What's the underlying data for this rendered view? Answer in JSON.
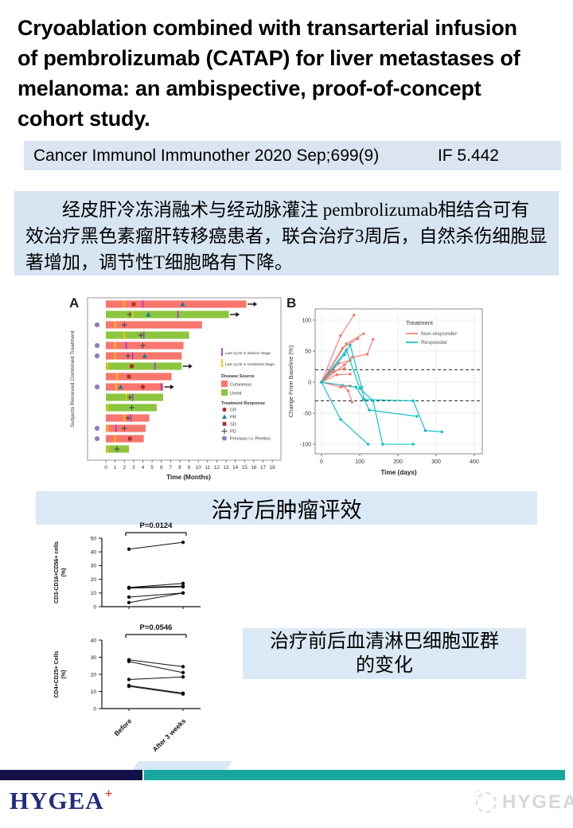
{
  "title": {
    "lines": [
      "Cryoablation combined with transarterial infusion",
      "of pembrolizumab (CATAP) for liver metastases of",
      "melanoma: an ambispective, proof-of-concept",
      "cohort study."
    ]
  },
  "citation": {
    "journal": "Cancer Immunol Immunother 2020 Sep;699(9)",
    "impact_factor": "IF 5.442"
  },
  "summary_cn": "经皮肝冷冻消融术与经动脉灌注 pembrolizumab相结合可有效治疗黑色素瘤肝转移癌患者，联合治疗3周后，自然杀伤细胞显著增加，调节性T细胞略有下降。",
  "captions": {
    "tumor_response": "治疗后肿瘤评效",
    "lymphocyte_line1": "治疗前后血清淋巴细胞亚群",
    "lymphocyte_line2": "的变化"
  },
  "footer": {
    "logo_text": "HYGEA",
    "logo_cross": "+",
    "watermark_text": "HYGEA",
    "navy": "#131048",
    "teal": "#18a7a0",
    "logo_color": "#222d7a",
    "cross_color": "#e52b1d"
  },
  "panel_colors": {
    "citation_bg": "#dbe5f1",
    "summary_bg": "#d7e4f2",
    "caption_bg": "#dbe9f6"
  },
  "chart_data": [
    {
      "id": "fig-a",
      "type": "swimmer",
      "panel_label": "A",
      "xlabel": "Time (Months)",
      "ylabel": "Subjects Received Combined Treatment",
      "xlim": [
        0,
        18
      ],
      "xticks": [
        0,
        1,
        2,
        3,
        4,
        5,
        6,
        7,
        8,
        9,
        10,
        11,
        12,
        13,
        14,
        15,
        16,
        17,
        18
      ],
      "colors": {
        "cutaneous": "#F8766D",
        "uveal": "#8CC63F",
        "combined": "#F2C500",
        "infusion": "#A43DD1",
        "cr_sd": "#A93226",
        "pr": "#17808D",
        "pd": "#444444",
        "prev_pembro": "#8E7CC3"
      },
      "legend": {
        "infusion_label": "Last Cycle in Infusion Stage",
        "combined_label": "Last Cycle in Combined Stage",
        "disease_title": "Disease Source",
        "disease_items": [
          {
            "label": "Cutaneous",
            "color": "#F8766D"
          },
          {
            "label": "Uveal",
            "color": "#8CC63F"
          }
        ],
        "response_title": "Treatment Response",
        "response_items": [
          {
            "label": "CR",
            "marker": "circle",
            "color": "#A93226"
          },
          {
            "label": "PR",
            "marker": "triangle",
            "color": "#17808D"
          },
          {
            "label": "SD",
            "marker": "square",
            "color": "#A93226"
          },
          {
            "label": "PD",
            "marker": "plus",
            "color": "#444444"
          },
          {
            "label": "Previous i.v. Pembro",
            "marker": "dot",
            "color": "#8E7CC3"
          }
        ]
      },
      "subjects": [
        {
          "disease": "Cutaneous",
          "months": 15.2,
          "ongoing": true,
          "prev_pembro": false,
          "marks": [
            {
              "t": "combined",
              "x": 2.0
            },
            {
              "t": "SD",
              "x": 3.0
            },
            {
              "t": "infusion",
              "x": 4.0
            },
            {
              "t": "PR",
              "x": 8.3
            }
          ]
        },
        {
          "disease": "Uveal",
          "months": 13.3,
          "ongoing": true,
          "prev_pembro": false,
          "marks": [
            {
              "t": "PD",
              "x": 2.6
            },
            {
              "t": "combined",
              "x": 2.9
            },
            {
              "t": "PR",
              "x": 4.6
            },
            {
              "t": "infusion",
              "x": 7.8
            }
          ]
        },
        {
          "disease": "Cutaneous",
          "months": 10.4,
          "ongoing": false,
          "prev_pembro": true,
          "marks": [
            {
              "t": "combined",
              "x": 1.0
            },
            {
              "t": "PD",
              "x": 2.0
            }
          ]
        },
        {
          "disease": "Uveal",
          "months": 9.0,
          "ongoing": false,
          "prev_pembro": false,
          "marks": [
            {
              "t": "combined",
              "x": 2.0
            },
            {
              "t": "PD",
              "x": 3.8
            },
            {
              "t": "infusion",
              "x": 4.1
            }
          ]
        },
        {
          "disease": "Cutaneous",
          "months": 8.4,
          "ongoing": false,
          "prev_pembro": true,
          "marks": [
            {
              "t": "combined",
              "x": 1.0
            },
            {
              "t": "infusion",
              "x": 2.2
            },
            {
              "t": "PD",
              "x": 4.0
            }
          ]
        },
        {
          "disease": "Cutaneous",
          "months": 8.2,
          "ongoing": false,
          "prev_pembro": true,
          "marks": [
            {
              "t": "combined",
              "x": 1.0
            },
            {
              "t": "PD",
              "x": 2.4
            },
            {
              "t": "infusion",
              "x": 2.9
            },
            {
              "t": "PR",
              "x": 4.2
            }
          ]
        },
        {
          "disease": "Uveal",
          "months": 8.2,
          "ongoing": true,
          "prev_pembro": false,
          "marks": [
            {
              "t": "combined",
              "x": 0.2
            },
            {
              "t": "SD",
              "x": 2.8
            },
            {
              "t": "infusion",
              "x": 5.3
            }
          ]
        },
        {
          "disease": "Cutaneous",
          "months": 7.1,
          "ongoing": false,
          "prev_pembro": false,
          "marks": [
            {
              "t": "combined",
              "x": 1.2
            },
            {
              "t": "SD",
              "x": 2.5
            }
          ]
        },
        {
          "disease": "Cutaneous",
          "months": 6.2,
          "ongoing": true,
          "prev_pembro": true,
          "marks": [
            {
              "t": "combined",
              "x": 1.1
            },
            {
              "t": "PR",
              "x": 1.6
            },
            {
              "t": "CR",
              "x": 4.0
            },
            {
              "t": "infusion",
              "x": 6.0
            }
          ]
        },
        {
          "disease": "Uveal",
          "months": 6.2,
          "ongoing": false,
          "prev_pembro": false,
          "marks": [
            {
              "t": "combined",
              "x": 2.2
            },
            {
              "t": "PD",
              "x": 2.6
            },
            {
              "t": "infusion",
              "x": 2.9
            }
          ]
        },
        {
          "disease": "Uveal",
          "months": 5.5,
          "ongoing": false,
          "prev_pembro": false,
          "marks": [
            {
              "t": "combined",
              "x": 0.2
            },
            {
              "t": "PD",
              "x": 2.8
            }
          ]
        },
        {
          "disease": "Cutaneous",
          "months": 4.7,
          "ongoing": false,
          "prev_pembro": false,
          "marks": [
            {
              "t": "combined",
              "x": 2.0
            },
            {
              "t": "PD",
              "x": 2.4
            },
            {
              "t": "infusion",
              "x": 2.7
            }
          ]
        },
        {
          "disease": "Cutaneous",
          "months": 4.3,
          "ongoing": false,
          "prev_pembro": true,
          "marks": [
            {
              "t": "combined",
              "x": 0.2
            },
            {
              "t": "infusion",
              "x": 1.1
            },
            {
              "t": "PD",
              "x": 2.0
            }
          ]
        },
        {
          "disease": "Cutaneous",
          "months": 4.1,
          "ongoing": false,
          "prev_pembro": true,
          "marks": [
            {
              "t": "combined",
              "x": 1.0
            },
            {
              "t": "SD",
              "x": 2.6
            }
          ]
        },
        {
          "disease": "Uveal",
          "months": 2.5,
          "ongoing": false,
          "prev_pembro": false,
          "marks": [
            {
              "t": "combined",
              "x": 0.2
            },
            {
              "t": "PD",
              "x": 1.2
            }
          ]
        }
      ]
    },
    {
      "id": "fig-b",
      "type": "spider",
      "panel_label": "B",
      "xlabel": "Time (days)",
      "ylabel": "Change From Baseline (%)",
      "xticks": [
        0,
        100,
        200,
        300,
        400
      ],
      "yticks": [
        -100,
        -50,
        0,
        50,
        100
      ],
      "xlim": [
        -15,
        420
      ],
      "ylim": [
        -115,
        115
      ],
      "ref_lines": [
        20,
        -30
      ],
      "legend": {
        "title": "Treatment",
        "items": [
          {
            "label": "Non-responder",
            "color": "#F8766D"
          },
          {
            "label": "Responder",
            "color": "#00BFC4"
          }
        ]
      },
      "series": [
        {
          "group": "Non-responder",
          "points": [
            [
              0,
              0
            ],
            [
              50,
              75
            ],
            [
              85,
              108
            ]
          ]
        },
        {
          "group": "Non-responder",
          "points": [
            [
              0,
              0
            ],
            [
              55,
              55
            ],
            [
              95,
              70
            ]
          ]
        },
        {
          "group": "Non-responder",
          "points": [
            [
              0,
              0
            ],
            [
              65,
              62
            ],
            [
              110,
              78
            ]
          ]
        },
        {
          "group": "Non-responder",
          "points": [
            [
              0,
              0
            ],
            [
              60,
              28
            ],
            [
              80,
              40
            ],
            [
              120,
              45
            ],
            [
              135,
              69
            ]
          ]
        },
        {
          "group": "Non-responder",
          "points": [
            [
              0,
              0
            ],
            [
              45,
              30
            ],
            [
              75,
              35
            ]
          ]
        },
        {
          "group": "Non-responder",
          "points": [
            [
              0,
              0
            ],
            [
              30,
              17
            ],
            [
              60,
              22
            ]
          ]
        },
        {
          "group": "Non-responder",
          "points": [
            [
              0,
              0
            ],
            [
              40,
              12
            ],
            [
              75,
              13
            ]
          ]
        },
        {
          "group": "Non-responder",
          "points": [
            [
              0,
              0
            ],
            [
              55,
              -5
            ],
            [
              70,
              -14
            ],
            [
              80,
              -32
            ]
          ]
        },
        {
          "group": "Non-responder",
          "points": [
            [
              0,
              0
            ],
            [
              50,
              -8
            ],
            [
              75,
              -6
            ]
          ]
        },
        {
          "group": "Responder",
          "points": [
            [
              0,
              0
            ],
            [
              60,
              44
            ],
            [
              75,
              60
            ],
            [
              105,
              -8
            ],
            [
              112,
              -28
            ],
            [
              125,
              -45
            ],
            [
              250,
              -55
            ]
          ]
        },
        {
          "group": "Responder",
          "points": [
            [
              0,
              0
            ],
            [
              65,
              52
            ],
            [
              100,
              -10
            ],
            [
              135,
              -30
            ],
            [
              160,
              -100
            ],
            [
              240,
              -100
            ]
          ]
        },
        {
          "group": "Responder",
          "points": [
            [
              0,
              0
            ],
            [
              50,
              -60
            ],
            [
              122,
              -100
            ]
          ]
        },
        {
          "group": "Responder",
          "points": [
            [
              0,
              0
            ],
            [
              90,
              -8
            ],
            [
              110,
              -28
            ],
            [
              240,
              -30
            ],
            [
              272,
              -78
            ],
            [
              315,
              -80
            ]
          ]
        }
      ]
    },
    {
      "id": "fig-c1",
      "type": "paired",
      "p_label": "P=0.0124",
      "ylabel_line1": "CD3-CD16+CD56+ cells",
      "ylabel_line2": "(%)",
      "ylim": [
        0,
        50
      ],
      "yticks": [
        0,
        10,
        20,
        30,
        40,
        50
      ],
      "categories": [
        "Before",
        "After 3 weeks"
      ],
      "show_xlabels": false,
      "pairs": [
        [
          42,
          47
        ],
        [
          14,
          17
        ],
        [
          14,
          15
        ],
        [
          13.5,
          14.5
        ],
        [
          7,
          10
        ],
        [
          3,
          10
        ]
      ]
    },
    {
      "id": "fig-c2",
      "type": "paired",
      "p_label": "P=0.0546",
      "ylabel_line1": "CD4+CD25+ Cells",
      "ylabel_line2": "(%)",
      "ylim": [
        0,
        40
      ],
      "yticks": [
        0,
        10,
        20,
        30,
        40
      ],
      "categories": [
        "Before",
        "After 3 weeks"
      ],
      "show_xlabels": true,
      "pairs": [
        [
          28.5,
          24.5
        ],
        [
          27.5,
          21
        ],
        [
          17,
          18.5
        ],
        [
          13.5,
          9
        ],
        [
          13,
          8.5
        ]
      ]
    }
  ]
}
